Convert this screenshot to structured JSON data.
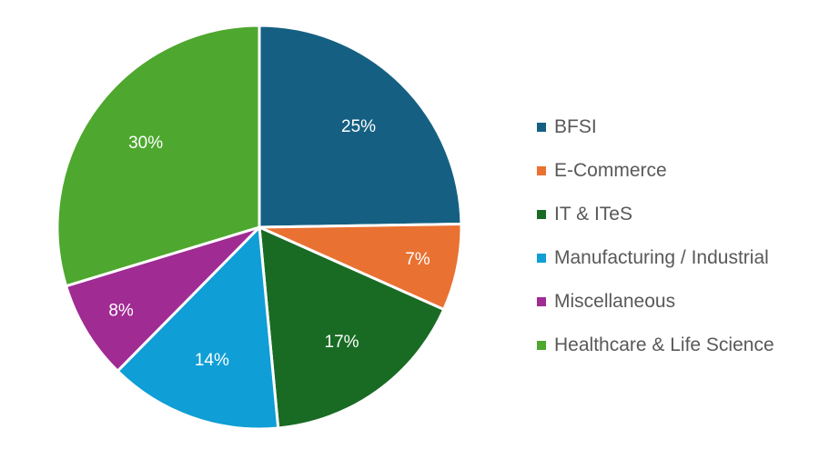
{
  "chart_data": {
    "type": "pie",
    "start_angle": "12 o'clock, clockwise",
    "legend_position": "right",
    "categories": [
      "BFSI",
      "E-Commerce",
      "IT & ITeS",
      "Manufacturing / Industrial",
      "Miscellaneous",
      "Healthcare & Life Science"
    ],
    "values": [
      25,
      7,
      17,
      14,
      8,
      30
    ],
    "data_labels": [
      "25%",
      "7%",
      "17%",
      "14%",
      "8%",
      "30%"
    ],
    "colors": [
      "#156082",
      "#E97132",
      "#196B24",
      "#0F9ED5",
      "#A02B93",
      "#4EA72E"
    ]
  }
}
